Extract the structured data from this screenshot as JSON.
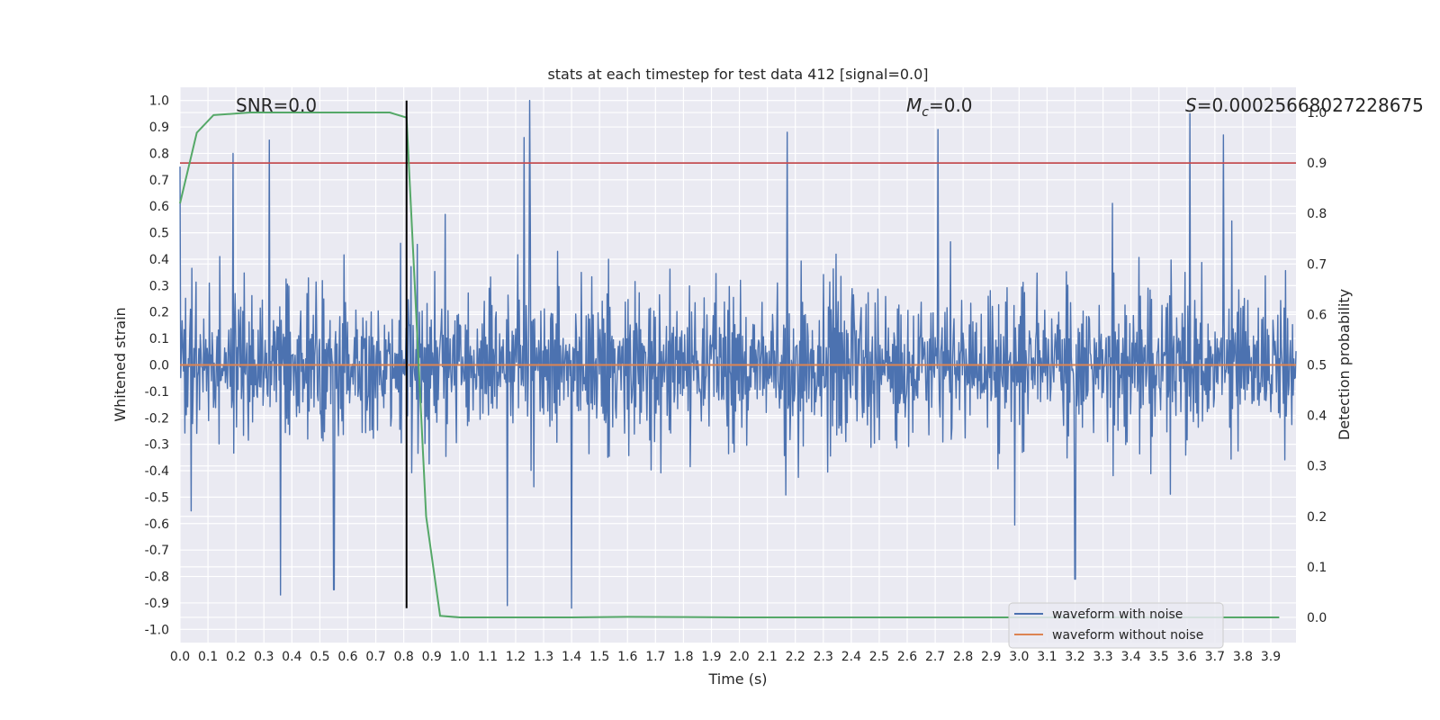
{
  "chart_data": {
    "type": "line",
    "title": "stats at each timestep for test data 412 [signal=0.0]",
    "xlabel": "Time (s)",
    "ylabel": "Whitened strain",
    "ylabel_right": "Detection probability",
    "xlim": [
      0.0,
      3.99
    ],
    "ylim": [
      -1.05,
      1.05
    ],
    "ylim_right": [
      -0.05,
      1.05
    ],
    "grid": true,
    "legend_position": "lower-right",
    "x_ticks": [
      "0.0",
      "0.1",
      "0.2",
      "0.3",
      "0.4",
      "0.5",
      "0.6",
      "0.7",
      "0.8",
      "0.9",
      "1.0",
      "1.1",
      "1.2",
      "1.3",
      "1.4",
      "1.5",
      "1.6",
      "1.7",
      "1.8",
      "1.9",
      "2.0",
      "2.1",
      "2.2",
      "2.3",
      "2.4",
      "2.5",
      "2.6",
      "2.7",
      "2.8",
      "2.9",
      "3.0",
      "3.1",
      "3.2",
      "3.3",
      "3.4",
      "3.5",
      "3.6",
      "3.7",
      "3.8",
      "3.9"
    ],
    "y_ticks": [
      "1.0",
      "0.9",
      "0.8",
      "0.7",
      "0.6",
      "0.5",
      "0.4",
      "0.3",
      "0.2",
      "0.1",
      "0.0",
      "-0.1",
      "-0.2",
      "-0.3",
      "-0.4",
      "-0.5",
      "-0.6",
      "-0.7",
      "-0.8",
      "-0.9",
      "-1.0"
    ],
    "y_ticks_right": [
      "1.0",
      "0.9",
      "0.8",
      "0.7",
      "0.6",
      "0.5",
      "0.4",
      "0.3",
      "0.2",
      "0.1",
      "0.0"
    ],
    "annotations": {
      "snr": "SNR=0.0",
      "mc_symbol": "M",
      "mc_subscript": "c",
      "mc_value": "=0.0",
      "s_symbol": "S",
      "s_value": "=0.00025668027228675"
    },
    "threshold_line": {
      "axis": "right",
      "value": 0.9,
      "color": "#c44e52"
    },
    "marker_line": {
      "x": 0.81,
      "y_range": [
        -0.92,
        1.0
      ],
      "color": "#000000"
    },
    "series": [
      {
        "name": "waveform with noise",
        "color": "#4c72b0",
        "axis": "left",
        "description_values": {
          "envelope_peaks": [
            {
              "x": 0.0,
              "y": 0.75
            },
            {
              "x": 0.19,
              "y": 0.8
            },
            {
              "x": 0.32,
              "y": 0.85
            },
            {
              "x": 0.36,
              "y": -0.87
            },
            {
              "x": 0.55,
              "y": -0.85
            },
            {
              "x": 1.25,
              "y": 1.0
            },
            {
              "x": 1.23,
              "y": 0.86
            },
            {
              "x": 1.4,
              "y": -0.92
            },
            {
              "x": 1.17,
              "y": -0.91
            },
            {
              "x": 2.17,
              "y": 0.88
            },
            {
              "x": 2.71,
              "y": 0.89
            },
            {
              "x": 3.2,
              "y": -0.81
            },
            {
              "x": 3.61,
              "y": 0.95
            },
            {
              "x": 3.73,
              "y": 0.87
            }
          ]
        }
      },
      {
        "name": "waveform without noise",
        "color": "#dd8452",
        "axis": "left",
        "x": [
          0.0,
          3.99
        ],
        "y": [
          0.0,
          0.0
        ]
      },
      {
        "name": "",
        "color": "#55a868",
        "axis": "right",
        "x": [
          0.0,
          0.06,
          0.12,
          0.25,
          0.5,
          0.75,
          0.81,
          0.88,
          0.93,
          1.0,
          1.4,
          1.6,
          2.0,
          3.0,
          3.93
        ],
        "y": [
          0.82,
          0.96,
          0.995,
          1.0,
          1.0,
          1.0,
          0.99,
          0.2,
          0.003,
          0.0,
          0.0,
          0.001,
          0.0,
          0.0,
          0.0
        ]
      }
    ]
  },
  "legend": {
    "items": [
      {
        "label": "waveform with noise",
        "color": "#4c72b0"
      },
      {
        "label": "waveform without noise",
        "color": "#dd8452"
      }
    ]
  }
}
